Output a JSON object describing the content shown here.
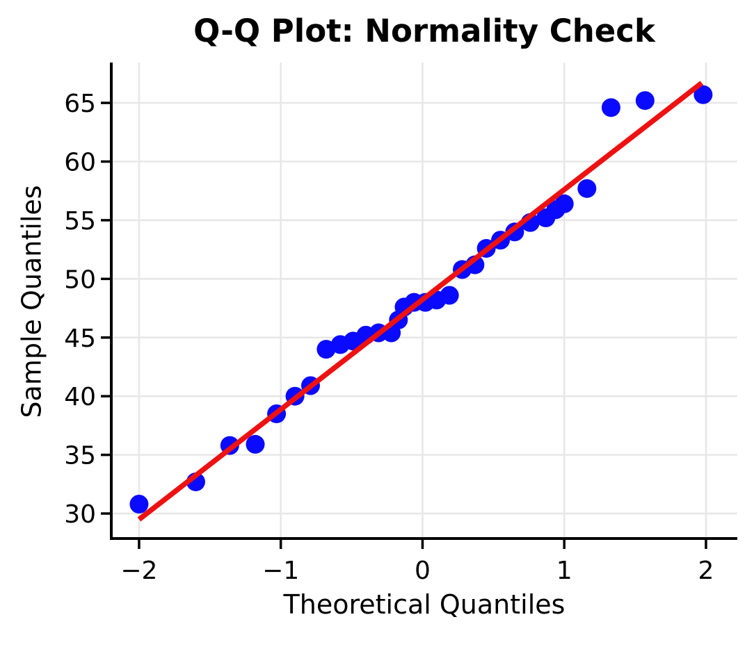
{
  "figure": {
    "background": "#ffffff"
  },
  "chart_data": {
    "type": "scatter",
    "title": "Q-Q Plot: Normality Check",
    "xlabel": "Theoretical Quantiles",
    "ylabel": "Sample Quantiles",
    "xlim": [
      -2.196,
      2.221
    ],
    "ylim": [
      27.87,
      68.44
    ],
    "x_ticks": [
      -2,
      -1,
      0,
      1,
      2
    ],
    "x_tick_labels": [
      "−2",
      "−1",
      "0",
      "1",
      "2"
    ],
    "y_ticks": [
      30,
      35,
      40,
      45,
      50,
      55,
      60,
      65
    ],
    "y_tick_labels": [
      "30",
      "35",
      "40",
      "45",
      "50",
      "55",
      "60",
      "65"
    ],
    "grid": true,
    "grid_color": "#e7e7e7",
    "spine_color": "#000000",
    "legend": "none",
    "series": [
      {
        "name": "sample-points",
        "marker": "circle",
        "color": "#0a0aff",
        "points": [
          [
            -2.0,
            30.8
          ],
          [
            -1.6,
            32.7
          ],
          [
            -1.36,
            35.8
          ],
          [
            -1.18,
            35.9
          ],
          [
            -1.03,
            38.5
          ],
          [
            -0.9,
            40.0
          ],
          [
            -0.79,
            40.9
          ],
          [
            -0.68,
            44.0
          ],
          [
            -0.58,
            44.4
          ],
          [
            -0.49,
            44.7
          ],
          [
            -0.4,
            45.2
          ],
          [
            -0.31,
            45.4
          ],
          [
            -0.22,
            45.4
          ],
          [
            -0.17,
            46.5
          ],
          [
            -0.13,
            47.6
          ],
          [
            -0.06,
            48.0
          ],
          [
            0.02,
            48.0
          ],
          [
            0.1,
            48.2
          ],
          [
            0.19,
            48.6
          ],
          [
            0.28,
            50.8
          ],
          [
            0.37,
            51.2
          ],
          [
            0.45,
            52.6
          ],
          [
            0.55,
            53.3
          ],
          [
            0.65,
            54.0
          ],
          [
            0.76,
            54.8
          ],
          [
            0.87,
            55.2
          ],
          [
            0.94,
            55.9
          ],
          [
            1.0,
            56.4
          ],
          [
            1.16,
            57.7
          ],
          [
            1.33,
            64.6
          ],
          [
            1.57,
            65.2
          ],
          [
            1.98,
            65.7
          ]
        ]
      }
    ],
    "reference_line": {
      "name": "normal-fit-line",
      "color": "#ee1111",
      "x1": -2.0,
      "y1": 29.5,
      "x2": 1.97,
      "y2": 66.7
    }
  }
}
